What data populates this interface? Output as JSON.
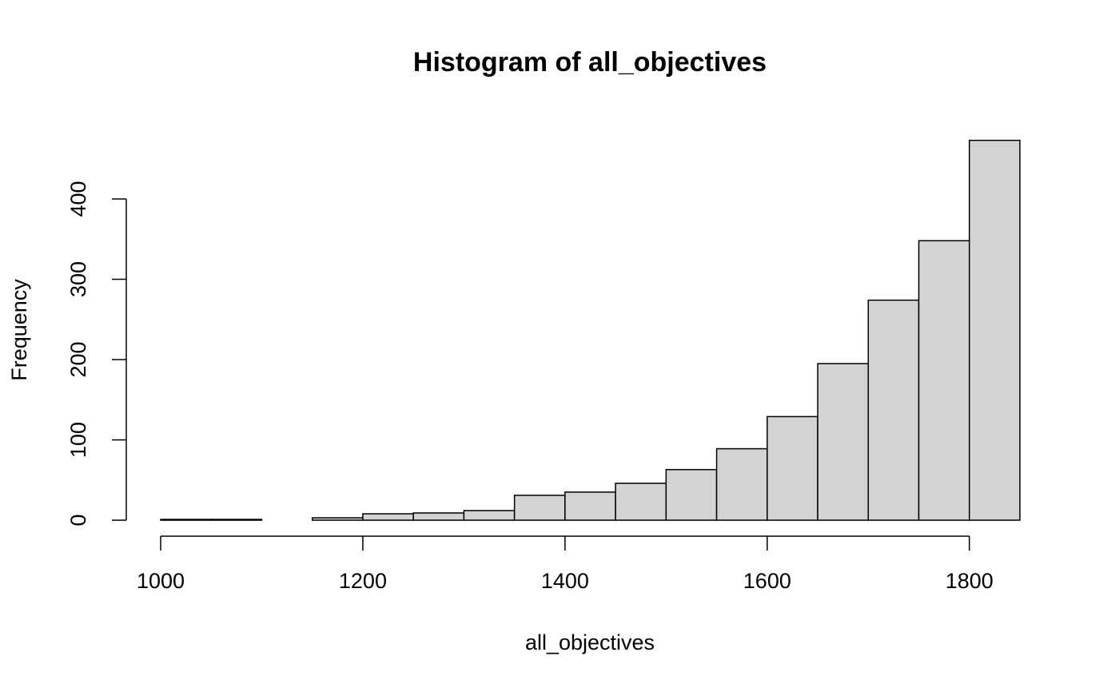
{
  "chart_data": {
    "type": "histogram",
    "title": "Histogram of all_objectives",
    "x_label": "all_objectives",
    "y_label": "Frequency",
    "bins": [
      1000,
      1050,
      1100,
      1150,
      1200,
      1250,
      1300,
      1350,
      1400,
      1450,
      1500,
      1550,
      1600,
      1650,
      1700,
      1750,
      1800,
      1850
    ],
    "values": [
      1,
      1,
      0,
      3,
      8,
      9,
      12,
      31,
      35,
      46,
      63,
      89,
      129,
      195,
      274,
      348,
      473
    ],
    "color": "#d3d3d3",
    "xlim": [
      1000,
      1850
    ],
    "xticks": [
      1000,
      1200,
      1400,
      1600,
      1800
    ],
    "ylim": [
      0,
      473
    ],
    "yticks": [
      0,
      100,
      200,
      300,
      400
    ]
  }
}
